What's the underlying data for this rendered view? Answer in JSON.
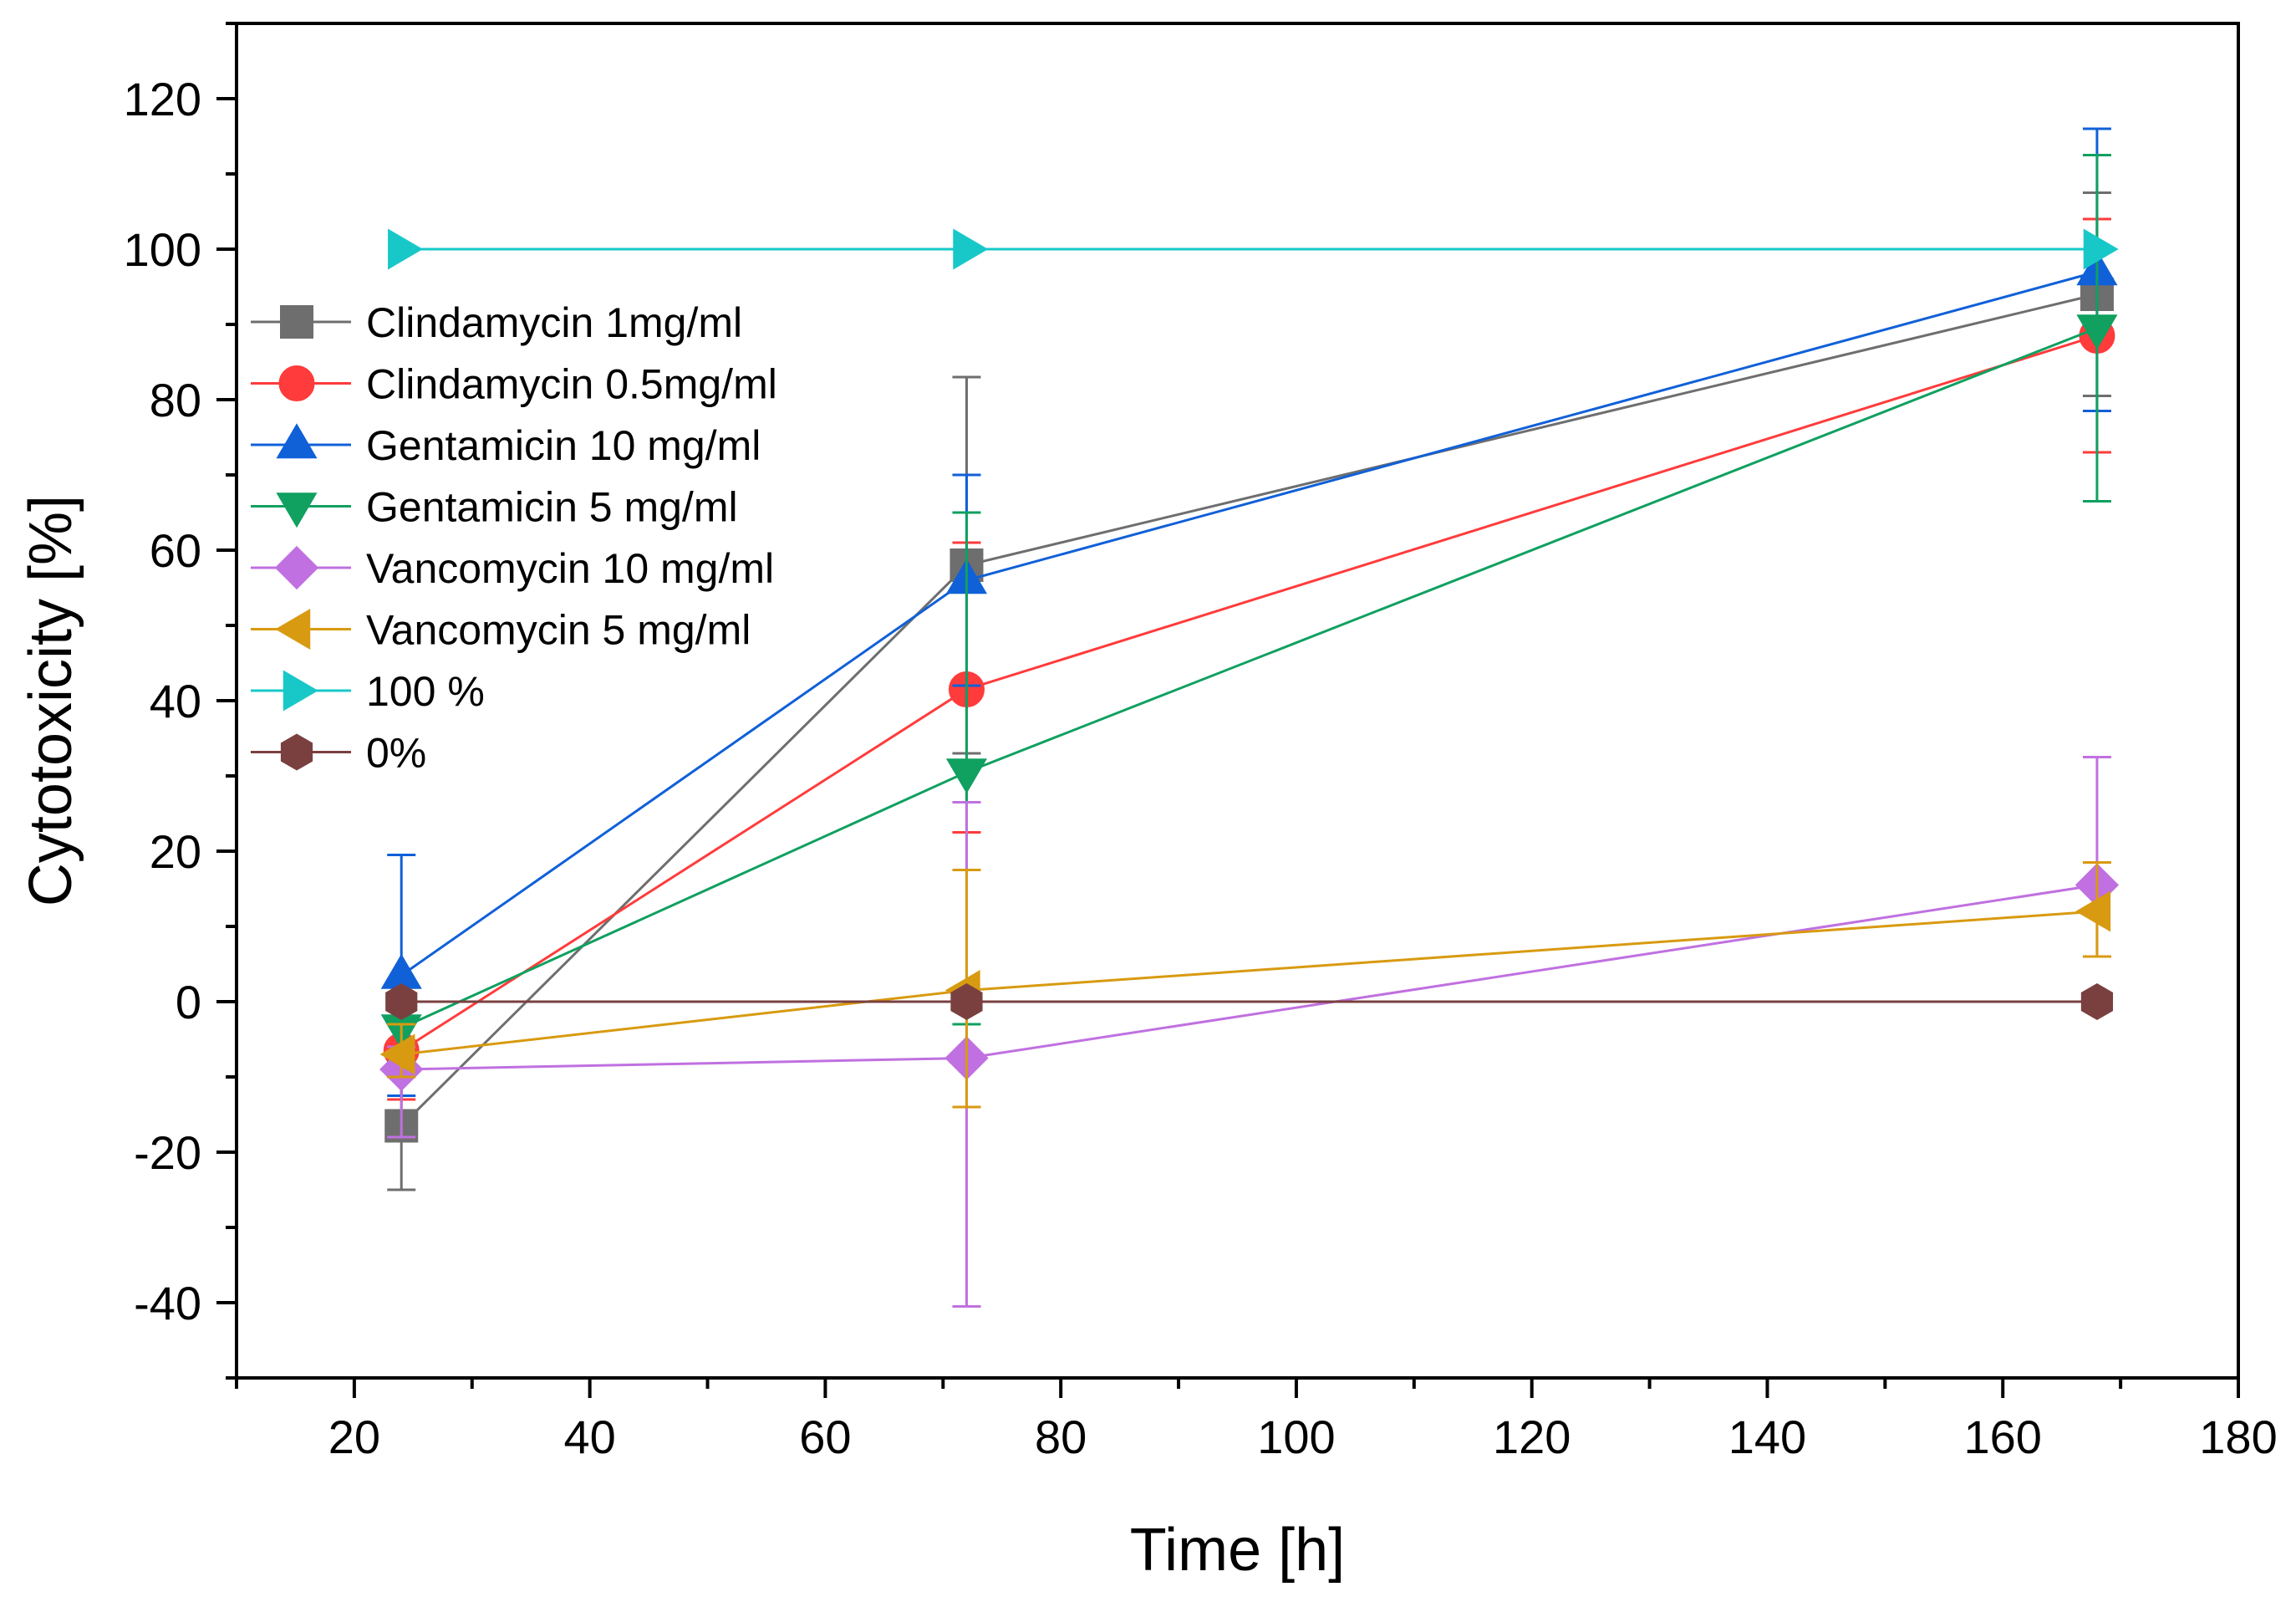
{
  "chart_data": {
    "type": "line",
    "title": "",
    "xlabel": "Time [h]",
    "ylabel": "Cytotoxicity [%]",
    "xlim": [
      10,
      180
    ],
    "ylim": [
      -50,
      130
    ],
    "x_ticks": [
      20,
      40,
      60,
      80,
      100,
      120,
      140,
      160,
      180
    ],
    "y_ticks": [
      -40,
      -20,
      0,
      20,
      40,
      60,
      80,
      100,
      120
    ],
    "x_tick_labels": [
      "20",
      "40",
      "60",
      "80",
      "100",
      "120",
      "140",
      "160",
      "180"
    ],
    "y_tick_labels": [
      "-40",
      "-20",
      "0",
      "20",
      "40",
      "60",
      "80",
      "100",
      "120"
    ],
    "x_minor_step": 10,
    "y_minor_step": 10,
    "grid": false,
    "legend_position": "upper-left",
    "x": [
      24,
      72,
      168
    ],
    "series": [
      {
        "name": "Clindamycin 1mg/ml",
        "color": "#6e6e6e",
        "marker": "square",
        "values": [
          -16.5,
          58,
          94
        ],
        "err_upper": [
          -10,
          83,
          107.5
        ],
        "err_lower": [
          -25,
          33,
          80.5
        ]
      },
      {
        "name": "Clindamycin 0.5mg/ml",
        "color": "#ff3b3b",
        "marker": "circle",
        "values": [
          -6.5,
          41.5,
          88.5
        ],
        "err_upper": [
          -3,
          61,
          104
        ],
        "err_lower": [
          -13,
          22.5,
          73
        ]
      },
      {
        "name": "Gentamicin 10 mg/ml",
        "color": "#1060d8",
        "marker": "triangle-up",
        "values": [
          3.5,
          56,
          97
        ],
        "err_upper": [
          19.5,
          70,
          116
        ],
        "err_lower": [
          -12.5,
          42,
          78.5
        ]
      },
      {
        "name": "Gentamicin 5 mg/ml",
        "color": "#10a060",
        "marker": "triangle-down",
        "values": [
          -3.5,
          30.5,
          89.5
        ],
        "err_upper": [
          -1,
          65,
          112.5
        ],
        "err_lower": [
          -8,
          -3,
          66.5
        ]
      },
      {
        "name": "Vancomycin 10 mg/ml",
        "color": "#c070e0",
        "marker": "diamond",
        "values": [
          -9,
          -7.5,
          15.5
        ],
        "err_upper": [
          -6,
          26.5,
          32.5
        ],
        "err_lower": [
          -18,
          -40.5,
          6
        ]
      },
      {
        "name": "Vancomycin 5 mg/ml",
        "color": "#d89a10",
        "marker": "triangle-left",
        "values": [
          -7,
          1.5,
          12
        ],
        "err_upper": [
          -3,
          17.5,
          18.5
        ],
        "err_lower": [
          -10,
          -14,
          6
        ]
      },
      {
        "name": "100 %",
        "color": "#18c8c8",
        "marker": "triangle-right",
        "values": [
          100,
          100,
          100
        ],
        "err_upper": null,
        "err_lower": null
      },
      {
        "name": "0%",
        "color": "#7a4040",
        "marker": "hexagon",
        "values": [
          0,
          0,
          0
        ],
        "err_upper": null,
        "err_lower": null
      }
    ]
  }
}
